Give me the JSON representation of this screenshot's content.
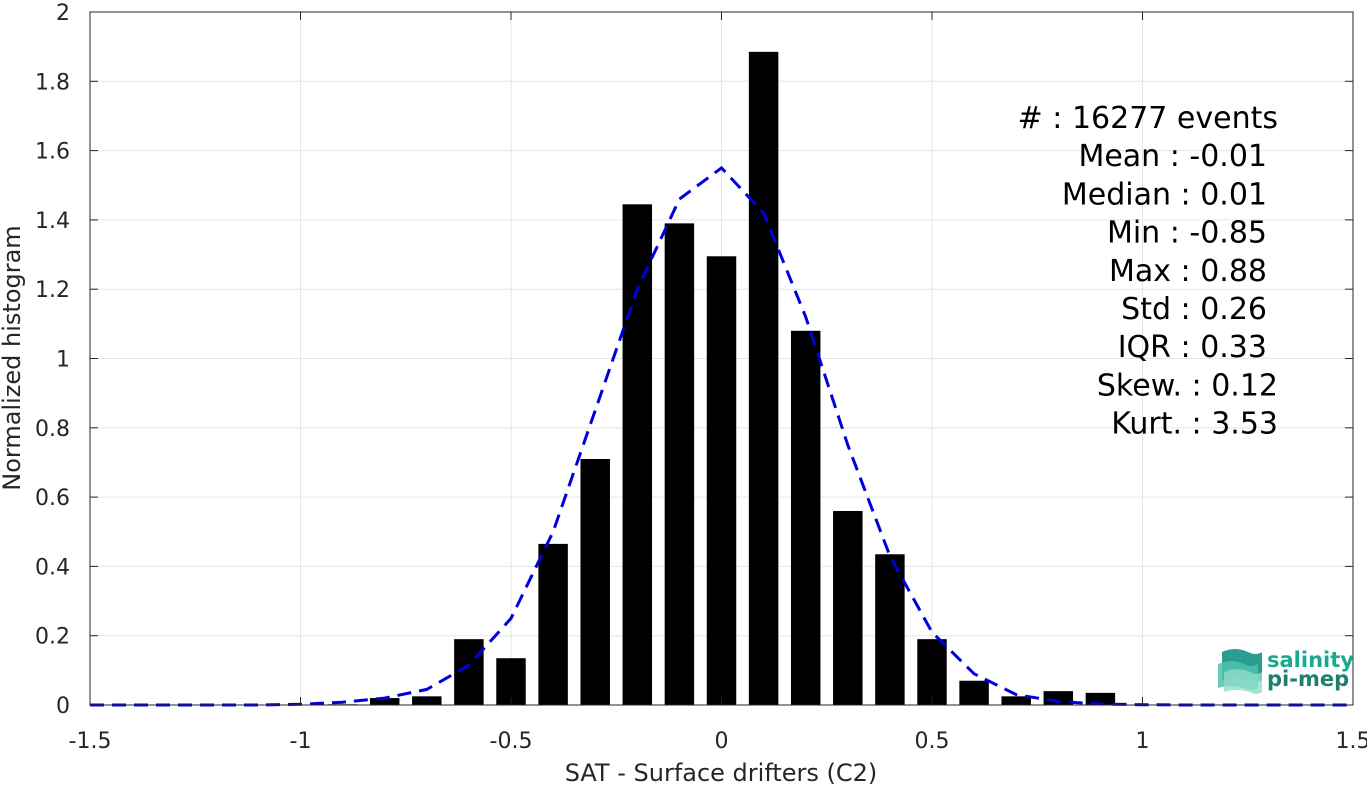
{
  "chart_data": {
    "type": "bar",
    "xlabel": "SAT - Surface drifters (C2)",
    "ylabel": "Normalized histogram",
    "xlim": [
      -1.5,
      1.5
    ],
    "ylim": [
      0,
      2
    ],
    "xticks": [
      "-1.5",
      "-1",
      "-0.5",
      "0",
      "0.5",
      "1",
      "1.5"
    ],
    "xtick_values": [
      -1.5,
      -1,
      -0.5,
      0,
      0.5,
      1,
      1.5
    ],
    "yticks": [
      "0",
      "0.2",
      "0.4",
      "0.6",
      "0.8",
      "1",
      "1.2",
      "1.4",
      "1.6",
      "1.8",
      "2"
    ],
    "ytick_values": [
      0,
      0.2,
      0.4,
      0.6,
      0.8,
      1,
      1.2,
      1.4,
      1.6,
      1.8,
      2
    ],
    "grid": true,
    "bar_color": "#000000",
    "bar_width": 0.07,
    "bars": {
      "x": [
        -0.9,
        -0.8,
        -0.7,
        -0.6,
        -0.5,
        -0.4,
        -0.3,
        -0.2,
        -0.1,
        0.0,
        0.1,
        0.2,
        0.3,
        0.4,
        0.5,
        0.6,
        0.7,
        0.8,
        0.9
      ],
      "values": [
        0.002,
        0.02,
        0.025,
        0.19,
        0.135,
        0.465,
        0.71,
        1.445,
        1.39,
        1.295,
        1.885,
        1.08,
        0.56,
        0.435,
        0.19,
        0.07,
        0.025,
        0.04,
        0.035
      ]
    },
    "fit": {
      "color": "#0000dd",
      "style": "dashed",
      "x": [
        -1.5,
        -1.4,
        -1.3,
        -1.2,
        -1.1,
        -1.0,
        -0.9,
        -0.8,
        -0.7,
        -0.6,
        -0.5,
        -0.4,
        -0.3,
        -0.2,
        -0.1,
        0.0,
        0.1,
        0.2,
        0.3,
        0.4,
        0.5,
        0.6,
        0.7,
        0.8,
        0.9,
        1.0,
        1.1,
        1.2,
        1.3,
        1.4,
        1.5
      ],
      "y": [
        0,
        0,
        0,
        0,
        0,
        0.002,
        0.008,
        0.02,
        0.045,
        0.115,
        0.25,
        0.5,
        0.85,
        1.2,
        1.46,
        1.55,
        1.42,
        1.12,
        0.75,
        0.43,
        0.21,
        0.09,
        0.03,
        0.01,
        0.003,
        0.001,
        0,
        0,
        0,
        0,
        0
      ]
    },
    "stats": [
      "#  : 16277 events",
      "Mean : -0.01",
      "Median : 0.01",
      "Min : -0.85",
      "Max : 0.88",
      "Std : 0.26",
      "IQR : 0.33",
      "Skew. : 0.12",
      "Kurt. : 3.53"
    ]
  },
  "logo": {
    "line1": "salinity",
    "line2": "pi-mep",
    "color1": "#1aa98f",
    "color2": "#1f7f6f"
  }
}
